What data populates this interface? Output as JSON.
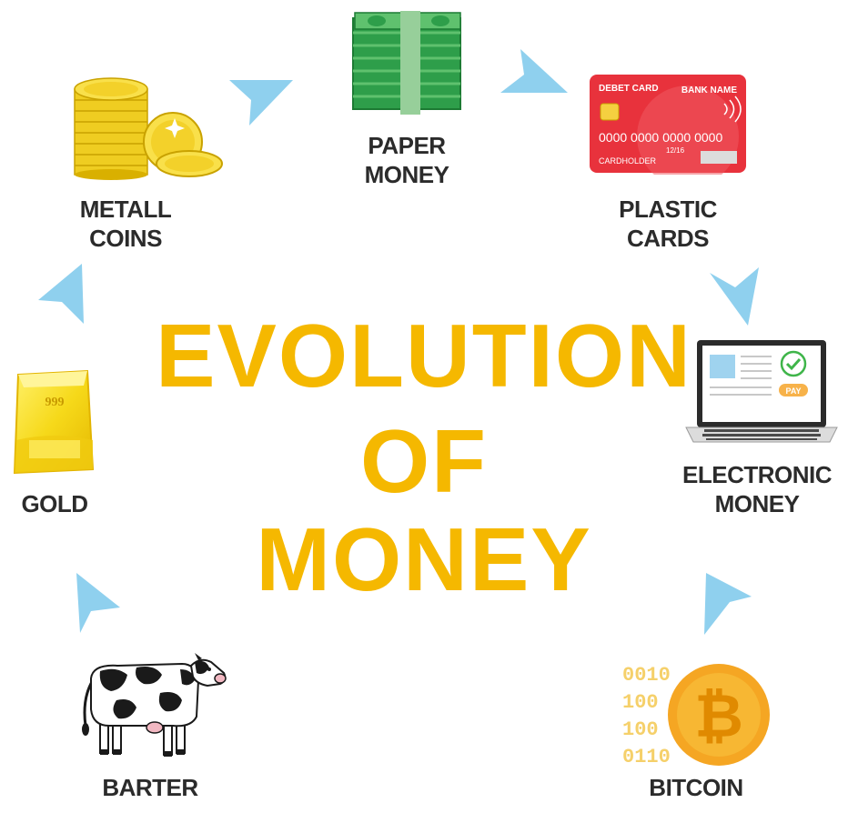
{
  "title": {
    "line1": "EVOLUTION",
    "line2": "OF",
    "line3": "MONEY"
  },
  "colors": {
    "title": "#f5b800",
    "arrow": "#8fd0ee",
    "label": "#2b2b2b"
  },
  "stages": [
    {
      "id": "barter",
      "label": [
        "BARTER"
      ],
      "icon": "cow-icon"
    },
    {
      "id": "gold",
      "label": [
        "GOLD"
      ],
      "icon": "gold-bar-icon",
      "icon_text": "999"
    },
    {
      "id": "metall-coins",
      "label": [
        "METALL",
        "COINS"
      ],
      "icon": "coins-icon"
    },
    {
      "id": "paper-money",
      "label": [
        "PAPER",
        "MONEY"
      ],
      "icon": "banknotes-icon"
    },
    {
      "id": "plastic-cards",
      "label": [
        "PLASTIC",
        "CARDS"
      ],
      "icon": "credit-card-icon",
      "card": {
        "type": "DEBET CARD",
        "bank": "BANK NAME",
        "number": "0000 0000 0000 0000",
        "expiry": "12/16",
        "holder": "CARDHOLDER"
      }
    },
    {
      "id": "electronic-money",
      "label": [
        "ELECTRONIC",
        "MONEY"
      ],
      "icon": "laptop-icon",
      "pay_label": "PAY"
    },
    {
      "id": "bitcoin",
      "label": [
        "BITCOIN"
      ],
      "icon": "bitcoin-icon",
      "binary": [
        "0010",
        "100",
        "100",
        "0110"
      ]
    }
  ]
}
